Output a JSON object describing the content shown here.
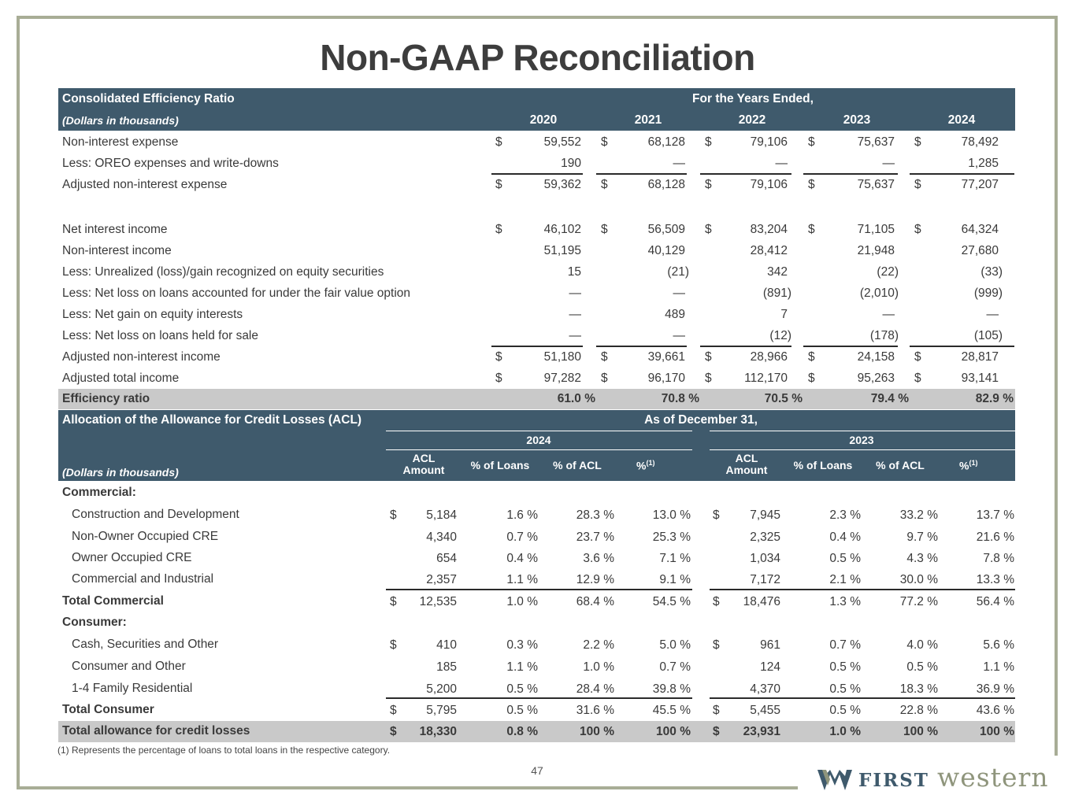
{
  "title": "Non-GAAP Reconciliation",
  "efficiency": {
    "heading": "Consolidated Efficiency Ratio",
    "period_label": "For the Years Ended,",
    "units": "(Dollars in thousands)",
    "years": [
      "2020",
      "2021",
      "2022",
      "2023",
      "2024"
    ],
    "rows": [
      {
        "label": "Non-interest expense",
        "dollar": true,
        "values": [
          "59,552",
          "68,128",
          "79,106",
          "75,637",
          "78,492"
        ]
      },
      {
        "label": "Less: OREO expenses and write-downs",
        "dollar": false,
        "values": [
          "190",
          "—",
          "—",
          "—",
          "1,285"
        ]
      },
      {
        "label": "Adjusted non-interest expense",
        "dollar": true,
        "values": [
          "59,362",
          "68,128",
          "79,106",
          "75,637",
          "77,207"
        ]
      },
      {
        "label": "Net interest income",
        "dollar": true,
        "values": [
          "46,102",
          "56,509",
          "83,204",
          "71,105",
          "64,324"
        ]
      },
      {
        "label": "Non-interest income",
        "dollar": false,
        "values": [
          "51,195",
          "40,129",
          "28,412",
          "21,948",
          "27,680"
        ]
      },
      {
        "label": "Less: Unrealized (loss)/gain recognized on equity securities",
        "dollar": false,
        "values": [
          "15",
          "(21)",
          "342",
          "(22)",
          "(33)"
        ]
      },
      {
        "label": "Less: Net loss on loans accounted for under the fair value option",
        "dollar": false,
        "values": [
          "—",
          "—",
          "(891)",
          "(2,010)",
          "(999)"
        ]
      },
      {
        "label": "Less: Net gain on equity interests",
        "dollar": false,
        "values": [
          "—",
          "489",
          "7",
          "—",
          "—"
        ]
      },
      {
        "label": "Less: Net loss on loans held for sale",
        "dollar": false,
        "values": [
          "—",
          "—",
          "(12)",
          "(178)",
          "(105)"
        ]
      },
      {
        "label": "Adjusted non-interest income",
        "dollar": true,
        "values": [
          "51,180",
          "39,661",
          "28,966",
          "24,158",
          "28,817"
        ]
      },
      {
        "label": "Adjusted total income",
        "dollar": true,
        "values": [
          "97,282",
          "96,170",
          "112,170",
          "95,263",
          "93,141"
        ]
      }
    ],
    "ratio_label": "Efficiency ratio",
    "ratio_values": [
      "61.0 %",
      "70.8 %",
      "70.5 %",
      "79.4 %",
      "82.9 %"
    ]
  },
  "acl": {
    "heading": "Allocation of the Allowance for Credit Losses (ACL)",
    "period_label": "As of December 31,",
    "units": "(Dollars in thousands)",
    "year_left": "2024",
    "year_right": "2023",
    "col_headers": {
      "amount_line1": "ACL",
      "amount_line2": "Amount",
      "pct_loans": "% of Loans",
      "pct_acl": "% of ACL",
      "pct": "%",
      "sup": "(1)"
    },
    "currency": "$",
    "rows": [
      {
        "label": "Commercial:",
        "type": "group",
        "dollar": false,
        "values": []
      },
      {
        "label": "Construction and Development",
        "type": "item",
        "dollar": true,
        "values": [
          "5,184",
          "1.6 %",
          "28.3 %",
          "13.0 %",
          "7,945",
          "2.3 %",
          "33.2 %",
          "13.7 %"
        ]
      },
      {
        "label": "Non-Owner Occupied CRE",
        "type": "item",
        "dollar": false,
        "values": [
          "4,340",
          "0.7 %",
          "23.7 %",
          "25.3 %",
          "2,325",
          "0.4 %",
          "9.7 %",
          "21.6 %"
        ]
      },
      {
        "label": "Owner Occupied CRE",
        "type": "item",
        "dollar": false,
        "values": [
          "654",
          "0.4 %",
          "3.6 %",
          "7.1 %",
          "1,034",
          "0.5 %",
          "4.3 %",
          "7.8 %"
        ]
      },
      {
        "label": "Commercial and Industrial",
        "type": "item",
        "dollar": false,
        "values": [
          "2,357",
          "1.1 %",
          "12.9 %",
          "9.1 %",
          "7,172",
          "2.1 %",
          "30.0 %",
          "13.3 %"
        ]
      },
      {
        "label": "Total Commercial",
        "type": "total",
        "dollar": true,
        "values": [
          "12,535",
          "1.0 %",
          "68.4 %",
          "54.5 %",
          "18,476",
          "1.3 %",
          "77.2 %",
          "56.4 %"
        ]
      },
      {
        "label": "Consumer:",
        "type": "group",
        "dollar": false,
        "values": []
      },
      {
        "label": "Cash, Securities and Other",
        "type": "item",
        "dollar": true,
        "values": [
          "410",
          "0.3 %",
          "2.2 %",
          "5.0 %",
          "961",
          "0.7 %",
          "4.0 %",
          "5.6 %"
        ]
      },
      {
        "label": "Consumer and Other",
        "type": "item",
        "dollar": false,
        "values": [
          "185",
          "1.1 %",
          "1.0 %",
          "0.7 %",
          "124",
          "0.5 %",
          "0.5 %",
          "1.1 %"
        ]
      },
      {
        "label": "1-4 Family Residential",
        "type": "item",
        "dollar": false,
        "values": [
          "5,200",
          "0.5 %",
          "28.4 %",
          "39.8 %",
          "4,370",
          "0.5 %",
          "18.3 %",
          "36.9 %"
        ]
      },
      {
        "label": "Total Consumer",
        "type": "total",
        "dollar": true,
        "values": [
          "5,795",
          "0.5 %",
          "31.6 %",
          "45.5 %",
          "5,455",
          "0.5 %",
          "22.8 %",
          "43.6 %"
        ]
      },
      {
        "label": "Total allowance for credit losses",
        "type": "grand",
        "dollar": true,
        "values": [
          "18,330",
          "0.8 %",
          "100 %",
          "100 %",
          "23,931",
          "1.0 %",
          "100 %",
          "100 %"
        ]
      }
    ]
  },
  "footnote": "(1) Represents the percentage of loans to total loans in the respective category.",
  "page_number": "47",
  "logo": {
    "first": "FIRST",
    "second": "western"
  }
}
